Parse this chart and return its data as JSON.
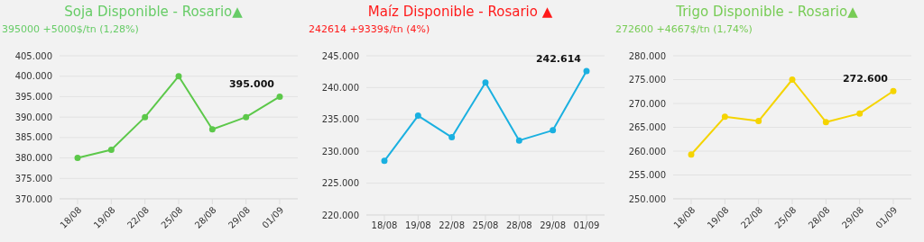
{
  "chart_data": [
    {
      "type": "line",
      "title": "Soja Disponible - Rosario▲",
      "subtitle": "395000 +5000$/tn (1,28%)",
      "categories": [
        "18/08",
        "19/08",
        "22/08",
        "25/08",
        "28/08",
        "29/08",
        "01/09"
      ],
      "series": [
        {
          "color": "#5cc84a",
          "values": [
            380000,
            382000,
            390000,
            400000,
            387000,
            390000,
            395000
          ],
          "value_labels": [
            null,
            null,
            null,
            null,
            null,
            null,
            "395.000"
          ]
        }
      ],
      "ylim": [
        370000,
        405000
      ],
      "yticks": [
        {
          "value": 370000,
          "label": "370.000"
        },
        {
          "value": 375000,
          "label": "375.000"
        },
        {
          "value": 380000,
          "label": "380.000"
        },
        {
          "value": 385000,
          "label": "385.000"
        },
        {
          "value": 390000,
          "label": "390.000"
        },
        {
          "value": 395000,
          "label": "395.000"
        },
        {
          "value": 400000,
          "label": "400.000"
        },
        {
          "value": 405000,
          "label": "405.000"
        }
      ],
      "grid": "y",
      "marker": "circle",
      "legend": false
    },
    {
      "type": "line",
      "title": "Maíz Disponible - Rosario ▲",
      "subtitle": "242614 +9339$/tn (4%)",
      "categories": [
        "18/08",
        "19/08",
        "22/08",
        "25/08",
        "28/08",
        "29/08",
        "01/09"
      ],
      "series": [
        {
          "color": "#1ab0e0",
          "values": [
            228500,
            235600,
            232200,
            240800,
            231700,
            233300,
            242614
          ],
          "value_labels": [
            null,
            null,
            null,
            null,
            null,
            null,
            "242.614"
          ]
        }
      ],
      "ylim": [
        220000,
        245000
      ],
      "yticks": [
        {
          "value": 220000,
          "label": "220.000"
        },
        {
          "value": 225000,
          "label": "225.000"
        },
        {
          "value": 230000,
          "label": "230.000"
        },
        {
          "value": 235000,
          "label": "235.000"
        },
        {
          "value": 240000,
          "label": "240.000"
        },
        {
          "value": 245000,
          "label": "245.000"
        }
      ],
      "grid": "y",
      "marker": "circle",
      "legend": false
    },
    {
      "type": "line",
      "title": "Trigo Disponible - Rosario▲",
      "subtitle": "272600 +4667$/tn (1,74%)",
      "categories": [
        "18/08",
        "19/08",
        "22/08",
        "25/08",
        "28/08",
        "29/08",
        "01/09"
      ],
      "series": [
        {
          "color": "#f5d400",
          "values": [
            259300,
            267200,
            266300,
            275000,
            266100,
            267900,
            272600
          ],
          "value_labels": [
            null,
            null,
            null,
            null,
            null,
            null,
            "272.600"
          ]
        }
      ],
      "ylim": [
        250000,
        280000
      ],
      "yticks": [
        {
          "value": 250000,
          "label": "250.000"
        },
        {
          "value": 255000,
          "label": "255.000"
        },
        {
          "value": 260000,
          "label": "260.000"
        },
        {
          "value": 265000,
          "label": "265.000"
        },
        {
          "value": 270000,
          "label": "270.000"
        },
        {
          "value": 275000,
          "label": "275.000"
        },
        {
          "value": 280000,
          "label": "280.000"
        }
      ],
      "grid": "y",
      "marker": "circle",
      "legend": false
    }
  ]
}
